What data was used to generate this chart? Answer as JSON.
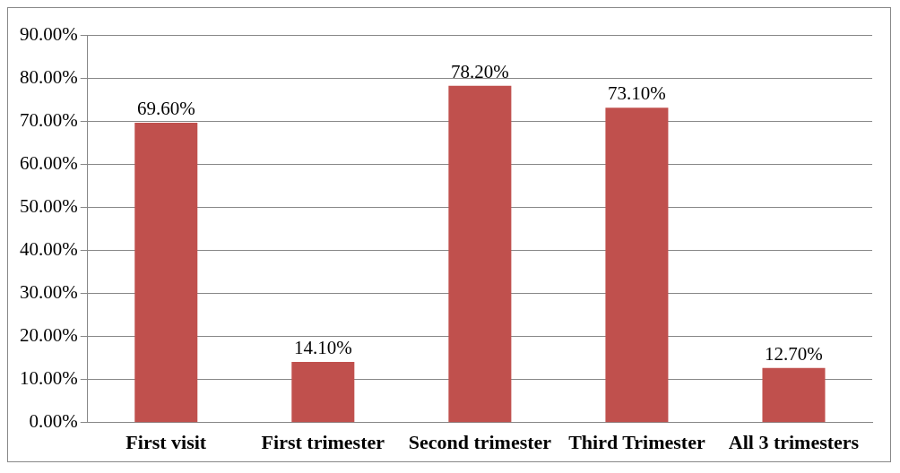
{
  "chart_data": {
    "type": "bar",
    "categories": [
      "First visit",
      "First trimester",
      "Second trimester",
      "Third Trimester",
      "All 3 trimesters"
    ],
    "values": [
      69.6,
      14.1,
      78.2,
      73.1,
      12.7
    ],
    "value_labels": [
      "69.60%",
      "14.10%",
      "78.20%",
      "73.10%",
      "12.70%"
    ],
    "color": "#c0504d",
    "ylim": [
      0,
      90
    ],
    "yticks": [
      {
        "value": 0,
        "label": "0.00%"
      },
      {
        "value": 10,
        "label": "10.00%"
      },
      {
        "value": 20,
        "label": "20.00%"
      },
      {
        "value": 30,
        "label": "30.00%"
      },
      {
        "value": 40,
        "label": "40.00%"
      },
      {
        "value": 50,
        "label": "50.00%"
      },
      {
        "value": 60,
        "label": "60.00%"
      },
      {
        "value": 70,
        "label": "70.00%"
      },
      {
        "value": 80,
        "label": "80.00%"
      },
      {
        "value": 90,
        "label": "90.00%"
      }
    ],
    "grid": "y",
    "legend": false
  }
}
